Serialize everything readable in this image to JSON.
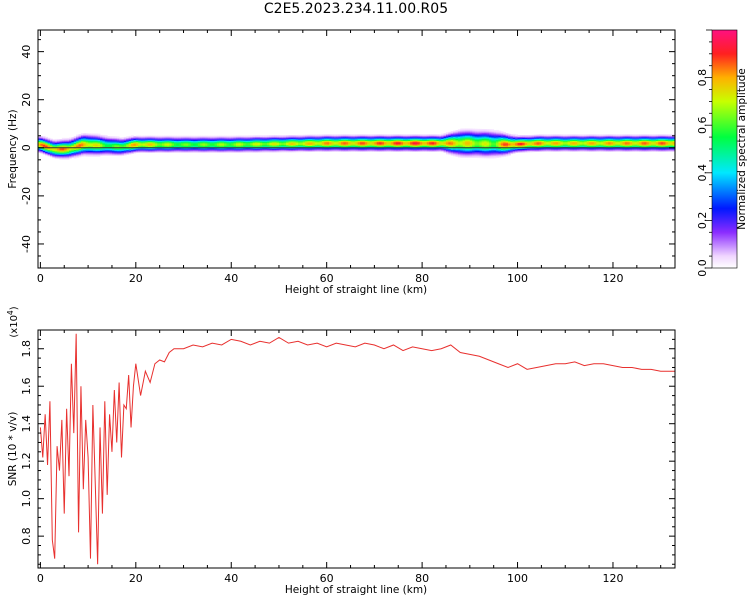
{
  "page": {
    "title": "C2E5.2023.234.11.00.R05"
  },
  "chart_data": [
    {
      "type": "heatmap",
      "xlabel": "Height of straight line (km)",
      "ylabel": "Frequency (Hz)",
      "xlim": [
        -0.5,
        133
      ],
      "ylim": [
        -50,
        49
      ],
      "xticks": [
        0,
        20,
        40,
        60,
        80,
        100,
        120
      ],
      "yticks": [
        -40,
        -20,
        0,
        20,
        40
      ],
      "colorbar": {
        "label": "Normalized spectral amplitude",
        "range": [
          0.0,
          1.0
        ],
        "ticks": [
          0.0,
          0.2,
          0.4,
          0.6,
          0.8
        ],
        "tick_labels": [
          "0.0",
          "0.2",
          "0.4",
          "0.6",
          "0.8"
        ]
      },
      "band": {
        "description": "energy concentrated near 1-2 Hz along full height range",
        "center_freq_hz": [
          [
            0,
            1.5
          ],
          [
            3,
            -0.5
          ],
          [
            6,
            -0.3
          ],
          [
            9,
            1.5
          ],
          [
            12,
            1.2
          ],
          [
            17,
            0.5
          ],
          [
            20,
            1.5
          ],
          [
            40,
            1.5
          ],
          [
            60,
            2
          ],
          [
            80,
            2
          ],
          [
            90,
            2
          ],
          [
            98,
            1.5
          ],
          [
            105,
            2
          ],
          [
            133,
            2
          ]
        ],
        "half_width_hz": [
          [
            0,
            3
          ],
          [
            10,
            4
          ],
          [
            20,
            3
          ],
          [
            40,
            3
          ],
          [
            84,
            3
          ],
          [
            88,
            5
          ],
          [
            95,
            5
          ],
          [
            100,
            3
          ],
          [
            133,
            3
          ]
        ],
        "peak_amplitude": [
          [
            0,
            0.9
          ],
          [
            10,
            0.85
          ],
          [
            15,
            0.6
          ],
          [
            20,
            0.85
          ],
          [
            30,
            0.65
          ],
          [
            50,
            0.75
          ],
          [
            60,
            0.85
          ],
          [
            80,
            0.95
          ],
          [
            95,
            0.7
          ],
          [
            98,
            0.95
          ],
          [
            110,
            0.8
          ],
          [
            133,
            0.9
          ]
        ]
      }
    },
    {
      "type": "line",
      "xlabel": "Height of straight line (km)",
      "ylabel": "SNR (10 * v/v)",
      "exponent_label": "(x10",
      "exponent_sup": "4",
      "exponent_close": ")",
      "xlim": [
        -0.5,
        133
      ],
      "ylim": [
        0.63,
        1.9
      ],
      "xticks": [
        0,
        20,
        40,
        60,
        80,
        100,
        120
      ],
      "yticks": [
        0.8,
        1.0,
        1.2,
        1.4,
        1.6,
        1.8
      ],
      "ytick_labels": [
        "0.8",
        "1.0",
        "1.2",
        "1.4",
        "1.6",
        "1.8"
      ],
      "series": [
        {
          "color": "#e8302e",
          "x": [
            0,
            0.5,
            1,
            1.5,
            2,
            2.5,
            3,
            3.5,
            4,
            4.5,
            5,
            5.5,
            6,
            6.5,
            7,
            7.5,
            8,
            8.5,
            9,
            9.5,
            10,
            10.5,
            11,
            11.5,
            12,
            12.5,
            13,
            13.5,
            14,
            14.5,
            15,
            15.5,
            16,
            16.5,
            17,
            17.5,
            18,
            18.5,
            19,
            19.5,
            20,
            21,
            22,
            23,
            24,
            25,
            26,
            27,
            28,
            30,
            32,
            34,
            36,
            38,
            40,
            42,
            44,
            46,
            48,
            50,
            52,
            54,
            56,
            58,
            60,
            62,
            64,
            66,
            68,
            70,
            72,
            74,
            76,
            78,
            80,
            82,
            84,
            86,
            88,
            90,
            92,
            94,
            96,
            98,
            100,
            102,
            104,
            106,
            108,
            110,
            112,
            114,
            116,
            118,
            120,
            122,
            124,
            126,
            128,
            130,
            132,
            133
          ],
          "y": [
            1.38,
            1.22,
            1.45,
            1.18,
            1.52,
            0.78,
            0.68,
            1.28,
            1.15,
            1.42,
            0.92,
            1.48,
            1.12,
            1.72,
            1.35,
            1.88,
            0.82,
            1.6,
            1.05,
            1.42,
            1.22,
            0.68,
            1.5,
            1.08,
            0.65,
            1.38,
            0.92,
            1.52,
            1.02,
            1.45,
            1.25,
            1.58,
            1.3,
            1.62,
            1.22,
            1.5,
            1.48,
            1.66,
            1.38,
            1.6,
            1.72,
            1.55,
            1.68,
            1.62,
            1.72,
            1.74,
            1.73,
            1.78,
            1.8,
            1.8,
            1.82,
            1.81,
            1.83,
            1.82,
            1.85,
            1.84,
            1.82,
            1.84,
            1.83,
            1.86,
            1.83,
            1.84,
            1.82,
            1.83,
            1.81,
            1.83,
            1.82,
            1.81,
            1.83,
            1.82,
            1.8,
            1.82,
            1.79,
            1.81,
            1.8,
            1.79,
            1.8,
            1.82,
            1.78,
            1.77,
            1.76,
            1.74,
            1.72,
            1.7,
            1.72,
            1.69,
            1.7,
            1.71,
            1.72,
            1.72,
            1.73,
            1.71,
            1.72,
            1.72,
            1.71,
            1.7,
            1.7,
            1.69,
            1.69,
            1.68,
            1.68,
            1.68
          ]
        }
      ]
    }
  ]
}
